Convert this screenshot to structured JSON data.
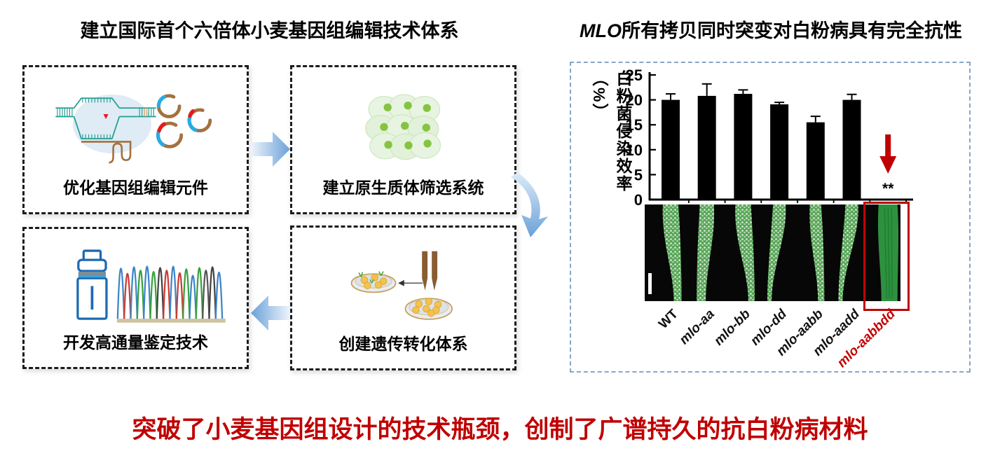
{
  "page": {
    "left_title": "建立国际首个六倍体小麦基因组编辑技术体系",
    "right_title_italic": "MLO",
    "right_title_rest": "所有拷贝同时突变对白粉病具有完全抗性",
    "bottom_banner": "突破了小麦基因组设计的技术瓶颈，创制了广谱持久的抗白粉病材料"
  },
  "workflow": {
    "steps": [
      {
        "label": "优化基因组编辑元件",
        "icon": "crispr-plasmids-icon"
      },
      {
        "label": "建立原生质体筛选系统",
        "icon": "protoplast-cells-icon"
      },
      {
        "label": "创建遗传转化体系",
        "icon": "petri-transformation-icon"
      },
      {
        "label": "开发高通量鉴定技术",
        "icon": "sequencing-chromatogram-icon"
      }
    ]
  },
  "chart_data": {
    "type": "bar",
    "title": "",
    "categories": [
      "WT",
      "mlo-aa",
      "mlo-bb",
      "mlo-dd",
      "mlo-aabb",
      "mlo-aadd",
      "mlo-aabbdd"
    ],
    "values": [
      20,
      20.8,
      21.2,
      19.1,
      15.5,
      20,
      0
    ],
    "errors": [
      1.2,
      2.4,
      0.8,
      0.4,
      1.2,
      1.1,
      0
    ],
    "xlabel": "",
    "ylabel": "白粉菌侵染效率（%）",
    "yticks": [
      0,
      5,
      10,
      15,
      20,
      25
    ],
    "ylim": [
      0,
      25
    ],
    "grid": false,
    "legend": "none",
    "bar_color": "#000000",
    "significance": {
      "category": "mlo-aabbdd",
      "marker": "**"
    },
    "highlight": {
      "category": "mlo-aabbdd",
      "color": "#c00000"
    },
    "leaf_panel": {
      "infected": [
        true,
        true,
        true,
        true,
        true,
        true,
        false
      ]
    }
  },
  "colors": {
    "accent_red": "#c00000",
    "panel_border_blue": "#8aa5c4",
    "arrow_blue": "#6aa1d8",
    "leaf_green_infected": "#59a659",
    "leaf_green_clean": "#2e9140"
  }
}
